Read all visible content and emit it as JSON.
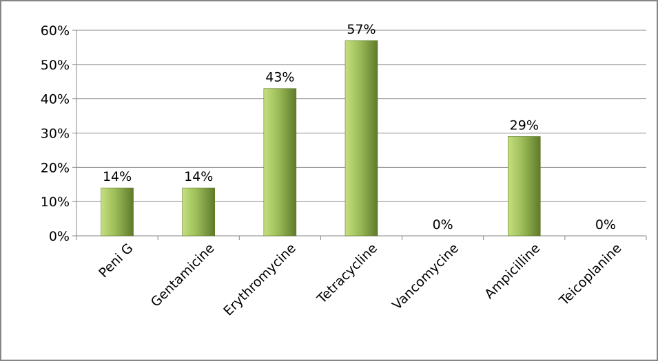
{
  "chart_data": {
    "type": "bar",
    "categories": [
      "Peni G",
      "Gentamicine",
      "Erythromycine",
      "Tetracycline",
      "Vancomycine",
      "Ampicilline",
      "Teicoplanine"
    ],
    "values": [
      14,
      14,
      43,
      57,
      0,
      29,
      0
    ],
    "data_labels": [
      "14%",
      "14%",
      "43%",
      "57%",
      "0%",
      "29%",
      "0%"
    ],
    "y_ticks": [
      "0%",
      "10%",
      "20%",
      "30%",
      "40%",
      "50%",
      "60%"
    ],
    "ylim": [
      0,
      60
    ],
    "grid": true,
    "legend": "none",
    "title": "",
    "xlabel": "",
    "ylabel": "",
    "colors": {
      "bar_light": "#c6e07e",
      "bar_mid": "#9bbb59",
      "bar_dark": "#5f7a2a",
      "gridline": "#868686",
      "text": "#000000"
    }
  }
}
